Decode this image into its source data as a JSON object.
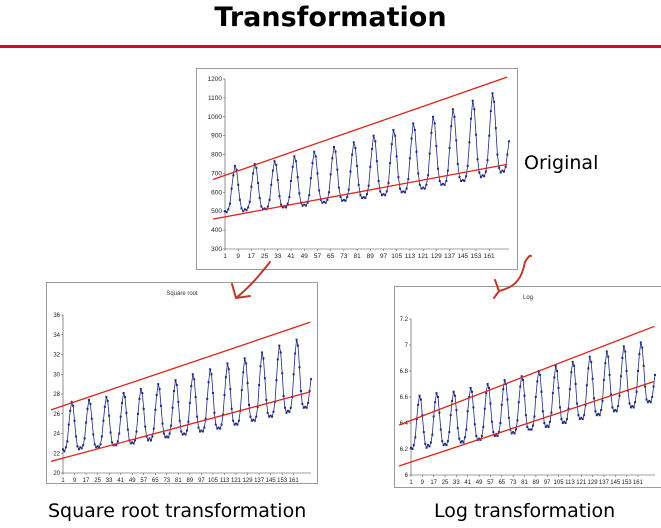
{
  "slide": {
    "title": "Transformation",
    "accent_color": "#c8102e"
  },
  "captions": {
    "original": "Original",
    "sqrt": "Square root transformation",
    "log": "Log transformation"
  },
  "styles": {
    "series_color": "#1f2a7a",
    "trend_color": "#d9251c",
    "arrow_color": "#c0392b"
  },
  "x_ticks": [
    "1",
    "9",
    "17",
    "25",
    "33",
    "41",
    "49",
    "57",
    "65",
    "73",
    "81",
    "89",
    "97",
    "105",
    "113",
    "121",
    "129",
    "137",
    "145",
    "153",
    "161"
  ],
  "chart_data": [
    {
      "type": "line",
      "title": "",
      "ylim": [
        300,
        1200
      ],
      "yticks": [
        300,
        400,
        500,
        600,
        700,
        800,
        900,
        1000,
        1100,
        1200
      ],
      "grid": false,
      "series": [
        {
          "values": [
            500,
            495,
            510,
            540,
            620,
            690,
            740,
            720,
            640,
            560,
            515,
            500,
            510,
            505,
            520,
            550,
            630,
            700,
            750,
            730,
            650,
            570,
            525,
            510,
            515,
            510,
            525,
            560,
            640,
            715,
            765,
            745,
            665,
            580,
            535,
            520,
            525,
            520,
            540,
            575,
            660,
            735,
            790,
            765,
            680,
            595,
            545,
            530,
            535,
            530,
            545,
            585,
            675,
            755,
            815,
            790,
            700,
            610,
            560,
            545,
            550,
            545,
            560,
            600,
            695,
            780,
            840,
            815,
            720,
            625,
            575,
            555,
            560,
            555,
            575,
            615,
            710,
            800,
            865,
            835,
            740,
            640,
            585,
            570,
            575,
            570,
            590,
            635,
            735,
            830,
            900,
            870,
            765,
            660,
            605,
            585,
            590,
            585,
            605,
            650,
            755,
            855,
            930,
            900,
            790,
            680,
            620,
            600,
            605,
            600,
            620,
            670,
            780,
            885,
            965,
            930,
            815,
            700,
            640,
            620,
            625,
            620,
            640,
            690,
            805,
            915,
            1000,
            965,
            845,
            725,
            660,
            640,
            645,
            640,
            660,
            715,
            835,
            950,
            1040,
            1000,
            875,
            750,
            680,
            660,
            665,
            660,
            685,
            740,
            865,
            990,
            1085,
            1040,
            905,
            775,
            705,
            680,
            690,
            685,
            710,
            770,
            900,
            1030,
            1125,
            1080,
            940,
            800,
            730,
            705,
            715,
            710,
            735,
            800,
            870
          ]
        }
      ],
      "trend_lines": [
        {
          "x": [
            1,
            167
          ],
          "y": [
            470,
            740
          ]
        },
        {
          "x": [
            1,
            167
          ],
          "y": [
            690,
            1195
          ]
        }
      ]
    },
    {
      "type": "line",
      "title": "Square root",
      "ylim": [
        20,
        36
      ],
      "yticks": [
        20,
        22,
        24,
        26,
        28,
        30,
        32,
        34,
        36
      ],
      "grid": false,
      "series": [
        {
          "values": [
            22.4,
            22.2,
            22.6,
            23.2,
            24.9,
            26.3,
            27.2,
            26.8,
            25.3,
            23.7,
            22.7,
            22.4,
            22.6,
            22.5,
            22.8,
            23.5,
            25.1,
            26.5,
            27.4,
            27.0,
            25.5,
            23.9,
            22.9,
            22.6,
            22.7,
            22.6,
            22.9,
            23.7,
            25.3,
            26.7,
            27.7,
            27.3,
            25.8,
            24.1,
            23.1,
            22.8,
            22.9,
            22.8,
            23.2,
            24.0,
            25.7,
            27.1,
            28.1,
            27.7,
            26.1,
            24.4,
            23.3,
            23.0,
            23.1,
            23.0,
            23.3,
            24.2,
            26.0,
            27.5,
            28.5,
            28.1,
            26.5,
            24.7,
            23.7,
            23.3,
            23.5,
            23.3,
            23.7,
            24.5,
            26.4,
            27.9,
            29.0,
            28.5,
            26.8,
            25.0,
            24.0,
            23.6,
            23.7,
            23.6,
            24.0,
            24.8,
            26.6,
            28.3,
            29.4,
            28.9,
            27.2,
            25.3,
            24.2,
            23.9,
            24.0,
            23.9,
            24.3,
            25.2,
            27.1,
            28.8,
            30.0,
            29.5,
            27.7,
            25.7,
            24.6,
            24.2,
            24.3,
            24.2,
            24.6,
            25.5,
            27.5,
            29.2,
            30.5,
            30.0,
            28.1,
            26.1,
            24.9,
            24.5,
            24.6,
            24.5,
            24.9,
            25.9,
            27.9,
            29.7,
            31.1,
            30.5,
            28.5,
            26.5,
            25.3,
            24.9,
            25.0,
            24.9,
            25.3,
            26.3,
            28.4,
            30.2,
            31.6,
            31.1,
            29.1,
            26.9,
            25.7,
            25.3,
            25.4,
            25.3,
            25.7,
            26.7,
            28.9,
            30.8,
            32.2,
            31.6,
            29.6,
            27.4,
            26.1,
            25.7,
            25.8,
            25.7,
            26.2,
            27.2,
            29.4,
            31.5,
            32.9,
            32.2,
            30.1,
            27.8,
            26.6,
            26.1,
            26.3,
            26.2,
            26.6,
            27.7,
            30.0,
            32.1,
            33.5,
            32.9,
            30.7,
            28.3,
            27.0,
            26.6,
            26.7,
            26.6,
            27.1,
            28.3,
            29.5
          ]
        }
      ],
      "trend_lines": [
        {
          "x": [
            1,
            167
          ],
          "y": [
            21.5,
            28.0
          ]
        },
        {
          "x": [
            1,
            167
          ],
          "y": [
            26.8,
            35.0
          ]
        }
      ]
    },
    {
      "type": "line",
      "title": "Log",
      "ylim": [
        6,
        7.2
      ],
      "yticks": [
        6,
        6.2,
        6.4,
        6.6,
        6.8,
        7,
        7.2
      ],
      "grid": false,
      "series": [
        {
          "values": [
            6.21,
            6.2,
            6.23,
            6.29,
            6.43,
            6.54,
            6.61,
            6.58,
            6.46,
            6.33,
            6.24,
            6.21,
            6.23,
            6.22,
            6.25,
            6.31,
            6.45,
            6.56,
            6.63,
            6.6,
            6.48,
            6.35,
            6.26,
            6.23,
            6.24,
            6.23,
            6.26,
            6.33,
            6.46,
            6.57,
            6.64,
            6.61,
            6.5,
            6.36,
            6.28,
            6.25,
            6.26,
            6.25,
            6.29,
            6.35,
            6.49,
            6.6,
            6.67,
            6.64,
            6.52,
            6.39,
            6.3,
            6.27,
            6.28,
            6.27,
            6.3,
            6.37,
            6.51,
            6.63,
            6.7,
            6.67,
            6.55,
            6.41,
            6.33,
            6.3,
            6.31,
            6.3,
            6.33,
            6.4,
            6.54,
            6.66,
            6.73,
            6.7,
            6.58,
            6.44,
            6.35,
            6.32,
            6.33,
            6.32,
            6.35,
            6.42,
            6.56,
            6.68,
            6.76,
            6.73,
            6.61,
            6.46,
            6.37,
            6.35,
            6.35,
            6.35,
            6.38,
            6.45,
            6.6,
            6.72,
            6.8,
            6.77,
            6.64,
            6.49,
            6.4,
            6.37,
            6.38,
            6.37,
            6.41,
            6.48,
            6.63,
            6.75,
            6.84,
            6.8,
            6.67,
            6.52,
            6.43,
            6.4,
            6.41,
            6.4,
            6.43,
            6.51,
            6.66,
            6.79,
            6.87,
            6.84,
            6.7,
            6.55,
            6.46,
            6.43,
            6.44,
            6.43,
            6.46,
            6.54,
            6.69,
            6.82,
            6.91,
            6.87,
            6.74,
            6.59,
            6.49,
            6.46,
            6.47,
            6.46,
            6.5,
            6.57,
            6.73,
            6.86,
            6.95,
            6.91,
            6.77,
            6.62,
            6.52,
            6.49,
            6.5,
            6.49,
            6.53,
            6.61,
            6.76,
            6.9,
            6.99,
            6.95,
            6.8,
            6.65,
            6.55,
            6.52,
            6.53,
            6.52,
            6.56,
            6.64,
            6.8,
            6.93,
            7.02,
            6.98,
            6.84,
            6.68,
            6.58,
            6.56,
            6.57,
            6.56,
            6.6,
            6.68,
            6.77
          ]
        }
      ],
      "trend_lines": [
        {
          "x": [
            1,
            167
          ],
          "y": [
            6.1,
            6.7
          ]
        },
        {
          "x": [
            1,
            167
          ],
          "y": [
            6.42,
            7.12
          ]
        }
      ]
    }
  ]
}
